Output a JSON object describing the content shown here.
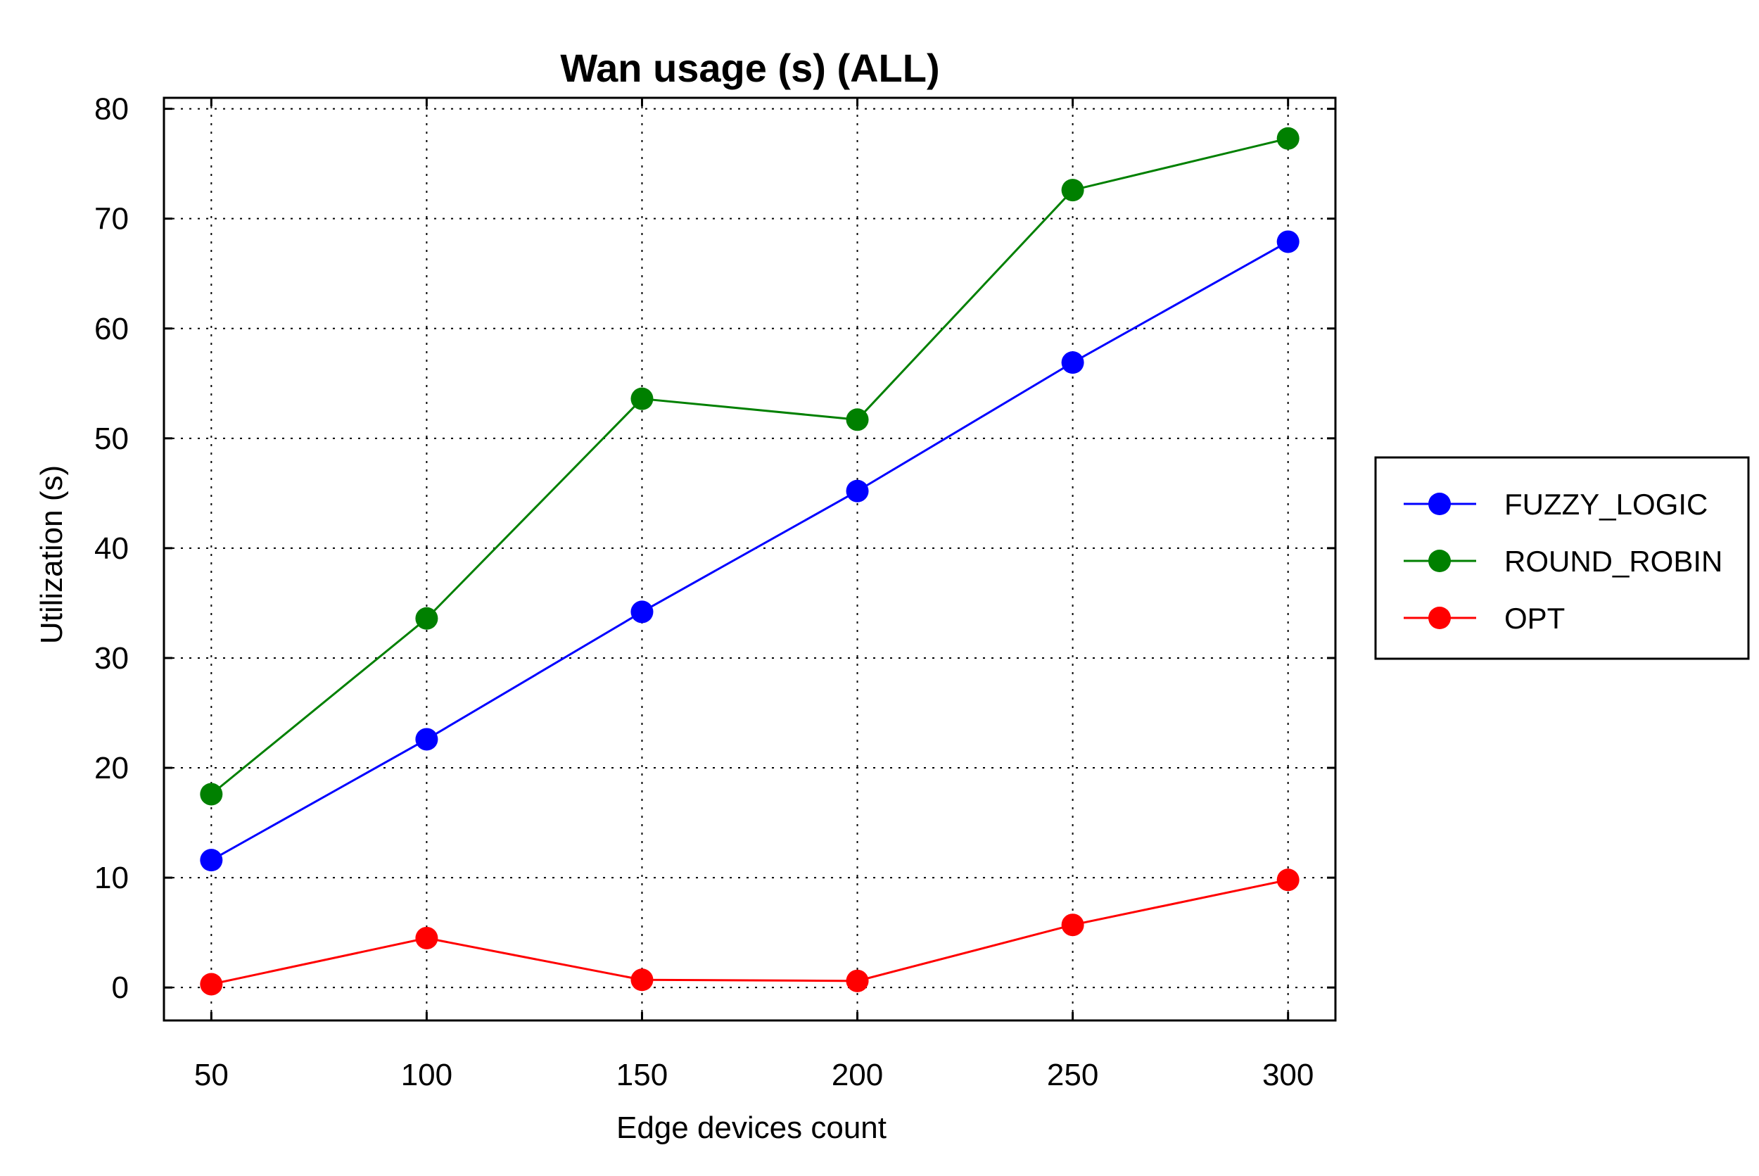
{
  "chart_data": {
    "type": "line",
    "title": "Wan usage (s) (ALL)",
    "xlabel": "Edge devices count",
    "ylabel": "Utilization (s)",
    "x": [
      50,
      100,
      150,
      200,
      250,
      300
    ],
    "x_ticks": [
      "50",
      "100",
      "150",
      "200",
      "250",
      "300"
    ],
    "y_ticks": [
      "0",
      "10",
      "20",
      "30",
      "40",
      "50",
      "60",
      "70",
      "80"
    ],
    "xlim": [
      39,
      311
    ],
    "ylim": [
      -3,
      81
    ],
    "grid": true,
    "grid_style": "dotted",
    "legend_position": "right",
    "series": [
      {
        "name": "FUZZY_LOGIC",
        "color": "#0000ff",
        "marker": "circle",
        "values": [
          11.6,
          22.6,
          34.2,
          45.2,
          56.9,
          67.9
        ]
      },
      {
        "name": " ROUND_ROBIN",
        "color": "#008000",
        "marker": "circle",
        "values": [
          17.6,
          33.6,
          53.6,
          51.7,
          72.6,
          77.3
        ]
      },
      {
        "name": "OPT",
        "color": "#ff0000",
        "marker": "circle",
        "values": [
          0.3,
          4.5,
          0.7,
          0.6,
          5.7,
          9.8
        ]
      }
    ]
  }
}
